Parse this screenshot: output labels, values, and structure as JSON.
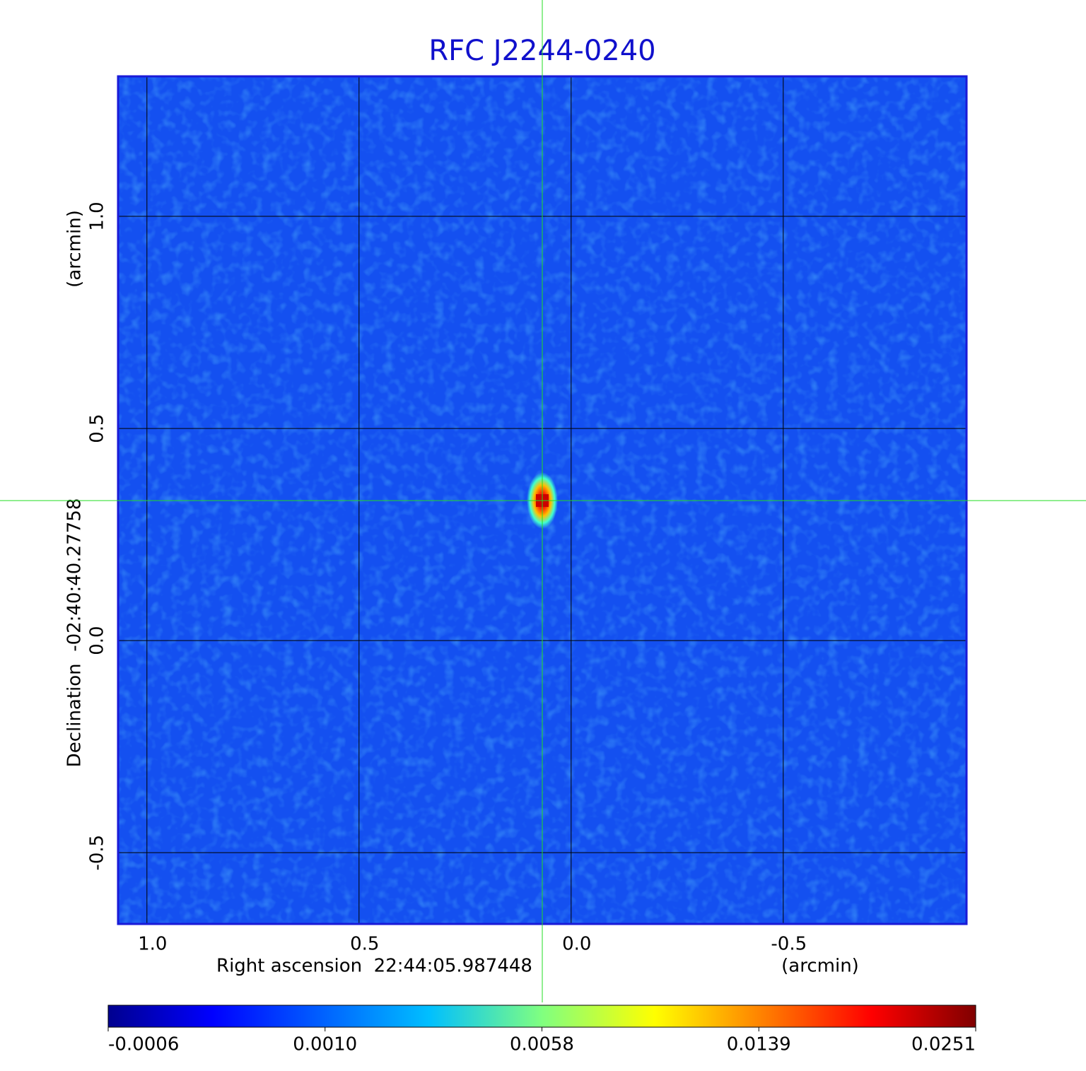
{
  "chart_data": {
    "type": "image",
    "title": "RFC J2244-0240",
    "xlabel": "Right ascension  22:44:05.987448",
    "xunit": "(arcmin)",
    "ylabel": "Declination  -02:40:40.27758",
    "yunit": "(arcmin)",
    "xlim": [
      1.068,
      -0.932
    ],
    "ylim": [
      -0.668,
      1.33
    ],
    "xticks": [
      {
        "value": 1,
        "label": "1.0"
      },
      0.5,
      {
        "value": 0,
        "label": "0.0"
      },
      -0.5
    ],
    "yticks": [
      {
        "value": 1,
        "label": "1.0"
      },
      0.5,
      {
        "value": 0,
        "label": "0.0"
      },
      -0.5
    ],
    "grid": true,
    "marker": {
      "x": 0.068,
      "y": 0.33,
      "color": "#22dd22"
    },
    "colorbar": {
      "colormap": "jet",
      "ticks": [
        -0.0006,
        {
          "value": 0.001,
          "label": "0.0010"
        },
        0.0058,
        0.0139,
        0.0251
      ]
    }
  }
}
